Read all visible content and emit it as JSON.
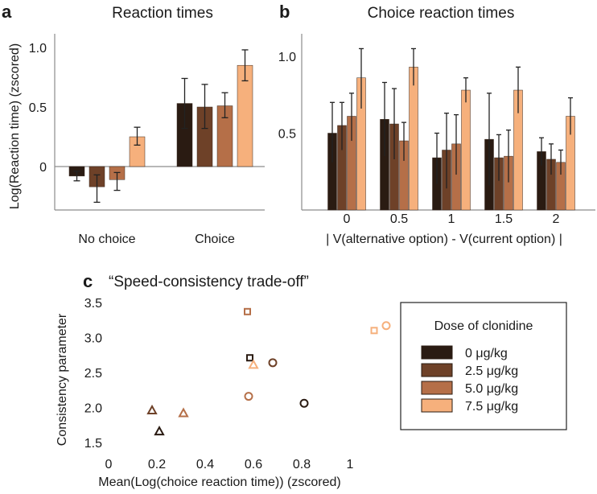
{
  "colors": {
    "dose0": "#2a1b12",
    "dose25": "#6e4128",
    "dose50": "#b56f48",
    "dose75": "#f6b07c"
  },
  "chart_data": [
    {
      "panel": "a",
      "type": "bar",
      "title": "Reaction times",
      "ylabel": "Log(Reaction time) (zscored)",
      "xlabel": "",
      "ylim": [
        -0.35,
        1.1
      ],
      "yticks": [
        0,
        0.5,
        1.0
      ],
      "ytick_labels": [
        "0",
        "0.5",
        "1.0"
      ],
      "categories": [
        "No choice",
        "Choice"
      ],
      "series": [
        {
          "name": "0 μg/kg",
          "values": [
            -0.08,
            0.53
          ],
          "err_lo": [
            0.04,
            0.21
          ],
          "err_hi": [
            0.04,
            0.21
          ]
        },
        {
          "name": "2.5 μg/kg",
          "values": [
            -0.17,
            0.5
          ],
          "err_lo": [
            0.13,
            0.18
          ],
          "err_hi": [
            0.1,
            0.19
          ]
        },
        {
          "name": "5.0 μg/kg",
          "values": [
            -0.11,
            0.51
          ],
          "err_lo": [
            0.09,
            0.1
          ],
          "err_hi": [
            0.06,
            0.11
          ]
        },
        {
          "name": "7.5 μg/kg",
          "values": [
            0.25,
            0.85
          ],
          "err_lo": [
            0.07,
            0.13
          ],
          "err_hi": [
            0.08,
            0.13
          ]
        }
      ]
    },
    {
      "panel": "b",
      "type": "bar",
      "title": "Choice reaction times",
      "xlabel": "| V(alternative option) - V(current option) |",
      "ylabel": "",
      "ylim": [
        0,
        1.2
      ],
      "yticks": [
        0.5,
        1.0
      ],
      "ytick_labels": [
        "0.5",
        "1.0"
      ],
      "categories": [
        "0",
        "0.5",
        "1",
        "1.5",
        "2"
      ],
      "series": [
        {
          "name": "0 μg/kg",
          "values": [
            0.5,
            0.59,
            0.34,
            0.46,
            0.38
          ],
          "err_lo": [
            0.19,
            0.24,
            0.17,
            0.3,
            0.09
          ],
          "err_hi": [
            0.2,
            0.24,
            0.16,
            0.3,
            0.09
          ]
        },
        {
          "name": "2.5 μg/kg",
          "values": [
            0.55,
            0.56,
            0.39,
            0.34,
            0.33
          ],
          "err_lo": [
            0.16,
            0.23,
            0.25,
            0.15,
            0.1
          ],
          "err_hi": [
            0.15,
            0.23,
            0.24,
            0.15,
            0.1
          ]
        },
        {
          "name": "5.0 μg/kg",
          "values": [
            0.61,
            0.45,
            0.43,
            0.35,
            0.31
          ],
          "err_lo": [
            0.16,
            0.13,
            0.2,
            0.17,
            0.08
          ],
          "err_hi": [
            0.15,
            0.12,
            0.19,
            0.17,
            0.08
          ]
        },
        {
          "name": "7.5 μg/kg",
          "values": [
            0.86,
            0.93,
            0.78,
            0.78,
            0.61
          ],
          "err_lo": [
            0.2,
            0.12,
            0.08,
            0.15,
            0.12
          ],
          "err_hi": [
            0.19,
            0.12,
            0.08,
            0.15,
            0.12
          ]
        }
      ]
    },
    {
      "panel": "c",
      "type": "scatter",
      "title": "“Speed-consistency trade-off”",
      "xlabel": "Mean(Log(choice reaction time)) (zscored)",
      "ylabel": "Consistency parameter",
      "xlim": [
        0,
        1.2
      ],
      "ylim": [
        1.5,
        3.5
      ],
      "xticks": [
        0,
        0.2,
        0.4,
        0.6,
        0.8,
        1.0
      ],
      "xtick_labels": [
        "0",
        "0.2",
        "0.4",
        "0.6",
        "0.8",
        "1"
      ],
      "yticks": [
        1.5,
        2.0,
        2.5,
        3.0,
        3.5
      ],
      "ytick_labels": [
        "1.5",
        "2.0",
        "2.5",
        "3.0",
        "3.5"
      ],
      "legend_title": "Dose of clonidine",
      "legend_entries": [
        "0 μg/kg",
        "2.5 μg/kg",
        "5.0 μg/kg",
        "7.5 μg/kg"
      ],
      "points": [
        {
          "x": 0.585,
          "y": 2.71,
          "marker": "square",
          "dose": 0
        },
        {
          "x": 0.81,
          "y": 2.06,
          "marker": "circle",
          "dose": 0
        },
        {
          "x": 0.21,
          "y": 1.66,
          "marker": "triangle",
          "dose": 0
        },
        {
          "x": 0.68,
          "y": 2.64,
          "marker": "circle",
          "dose": 1
        },
        {
          "x": 0.18,
          "y": 1.96,
          "marker": "triangle",
          "dose": 1
        },
        {
          "x": 0.575,
          "y": 3.37,
          "marker": "square",
          "dose": 2
        },
        {
          "x": 0.58,
          "y": 2.16,
          "marker": "circle",
          "dose": 2
        },
        {
          "x": 0.31,
          "y": 1.92,
          "marker": "triangle",
          "dose": 2
        },
        {
          "x": 1.1,
          "y": 3.1,
          "marker": "square",
          "dose": 3
        },
        {
          "x": 1.15,
          "y": 3.17,
          "marker": "circle",
          "dose": 3
        },
        {
          "x": 0.6,
          "y": 2.61,
          "marker": "triangle",
          "dose": 3
        }
      ]
    }
  ]
}
